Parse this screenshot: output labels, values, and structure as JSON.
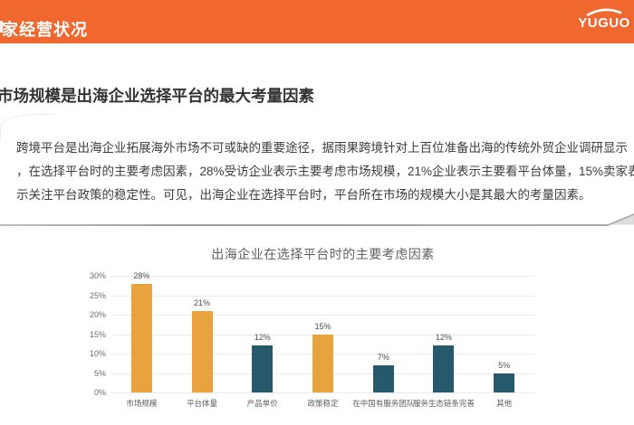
{
  "header": {
    "title": "家经营状况",
    "logo_text": "YUGUO",
    "bg_color": "#F0682F"
  },
  "article": {
    "heading": "市场规模是出海企业选择平台的最大考量因素",
    "paragraph_lines": [
      "跨境平台是出海企业拓展海外市场不可或缺的重要途径，据雨果跨境针对上百位准备出海的传统外贸企业调研显示",
      "，在选择平台时的主要考虑因素，28%受访企业表示主要考虑市场规模，21%企业表示主要看平台体量，15%卖家表",
      "示关注平台政策的稳定性。可见，出海企业在选择平台时，平台所在市场的规模大小是其最大的考量因素。"
    ]
  },
  "chart_data": {
    "type": "bar",
    "title": "出海企业在选择平台时的主要考虑因素",
    "categories": [
      "市场规模",
      "平台体量",
      "产品单价",
      "政策稳定",
      "在中国有服务团队",
      "服务生态链条完善",
      "其他"
    ],
    "values": [
      28,
      21,
      12,
      15,
      7,
      12,
      5
    ],
    "value_labels": [
      "28%",
      "21%",
      "12%",
      "15%",
      "7%",
      "12%",
      "5%"
    ],
    "bar_colors": [
      "#E8A23E",
      "#E8A23E",
      "#27596D",
      "#E8A23E",
      "#27596D",
      "#27596D",
      "#27596D"
    ],
    "unit": "%",
    "xlabel": "",
    "ylabel": "",
    "ylim": [
      0,
      30
    ],
    "ytick_step": 5,
    "yticks": [
      "0%",
      "5%",
      "10%",
      "15%",
      "20%",
      "25%",
      "30%"
    ],
    "grid": true,
    "legend": "none",
    "colors": {
      "orange": "#E8A23E",
      "dark_teal": "#27596D"
    }
  }
}
